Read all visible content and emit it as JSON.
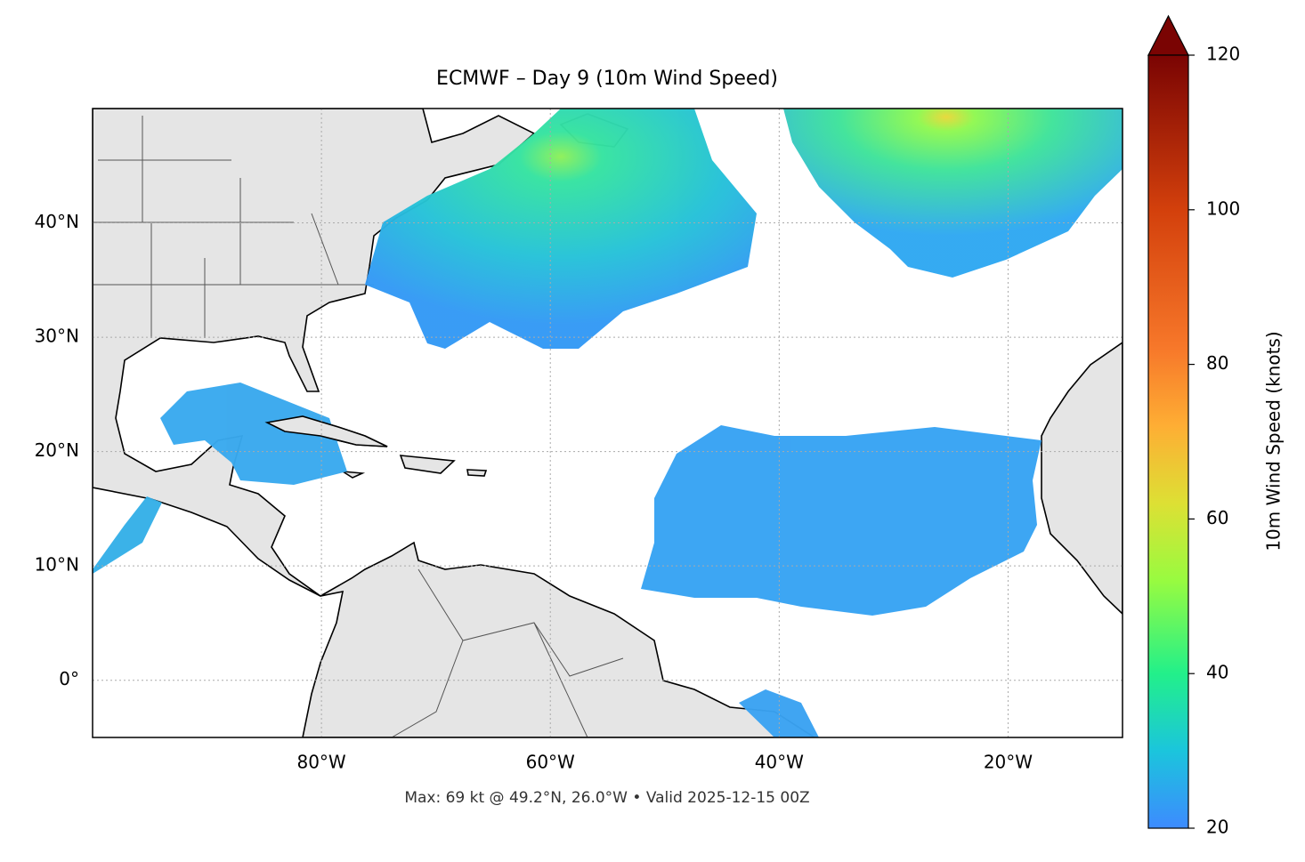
{
  "chart_data": {
    "type": "map",
    "title": "ECMWF – Day 9 (10m Wind Speed)",
    "footnote": "Max: 69 kt @ 49.2°N, 26.0°W • Valid 2025-12-15 00Z",
    "xlim": [
      -100,
      -10
    ],
    "ylim": [
      -5,
      50
    ],
    "xticks": [
      {
        "value": -80,
        "label": "80°W"
      },
      {
        "value": -60,
        "label": "60°W"
      },
      {
        "value": -40,
        "label": "40°W"
      },
      {
        "value": -20,
        "label": "20°W"
      }
    ],
    "yticks": [
      {
        "value": 0,
        "label": "0°"
      },
      {
        "value": 10,
        "label": "10°N"
      },
      {
        "value": 20,
        "label": "20°N"
      },
      {
        "value": 30,
        "label": "30°N"
      },
      {
        "value": 40,
        "label": "40°N"
      }
    ],
    "grid": true,
    "colorbar": {
      "label": "10m Wind Speed (knots)",
      "lim": [
        20,
        120
      ],
      "ticks": [
        20,
        40,
        60,
        80,
        100,
        120
      ]
    }
  }
}
